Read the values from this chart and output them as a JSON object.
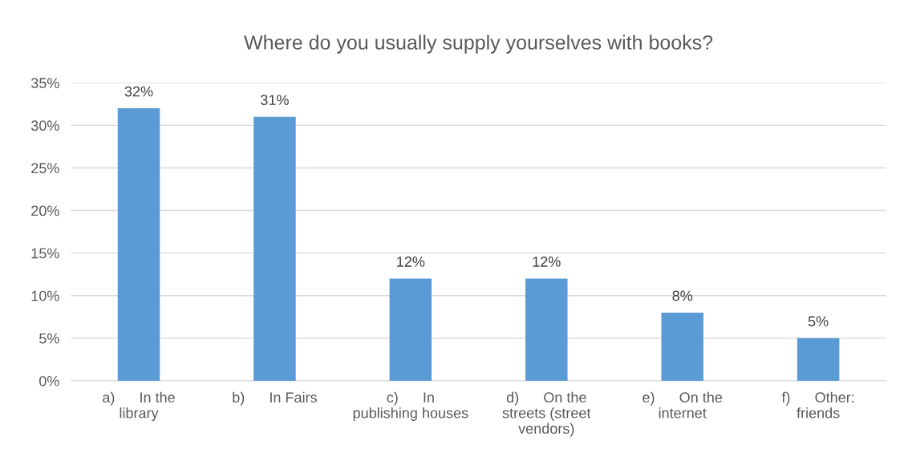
{
  "chart_data": {
    "type": "bar",
    "title": "Where do you usually supply yourselves with books?",
    "categories": [
      "a)      In the library",
      "b)      In Fairs",
      "c)      In publishing houses",
      "d)      On the streets (street vendors)",
      "e)      On the internet",
      "f)      Other: friends"
    ],
    "values": [
      32,
      31,
      12,
      12,
      8,
      5
    ],
    "value_labels": [
      "32%",
      "31%",
      "12%",
      "12%",
      "8%",
      "5%"
    ],
    "color": "#5b9bd5",
    "ylim": [
      0,
      35
    ],
    "yticks": [
      {
        "value": 0,
        "label": "0%"
      },
      {
        "value": 5,
        "label": "5%"
      },
      {
        "value": 10,
        "label": "10%"
      },
      {
        "value": 15,
        "label": "15%"
      },
      {
        "value": 20,
        "label": "20%"
      },
      {
        "value": 25,
        "label": "25%"
      },
      {
        "value": 30,
        "label": "30%"
      },
      {
        "value": 35,
        "label": "35%"
      }
    ],
    "grid": "y"
  }
}
